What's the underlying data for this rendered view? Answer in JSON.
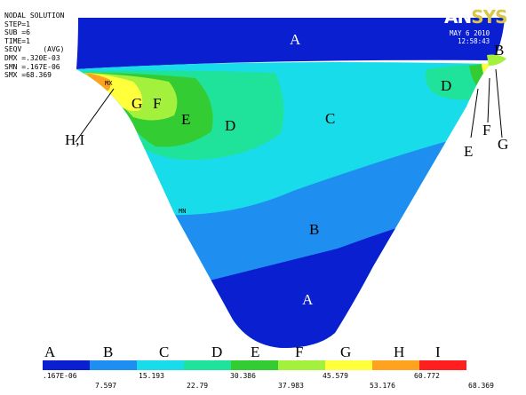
{
  "info": {
    "lines": [
      "NODAL SOLUTION",
      "STEP=1",
      "SUB =6",
      "TIME=1",
      "SEQV     (AVG)",
      "DMX =.320E-03",
      "SMN =.167E-06",
      "SMX =68.369"
    ]
  },
  "logo": {
    "part1": "AN",
    "part2": "SYS"
  },
  "date_lines": [
    "MAY  6 2010",
    "12:58:43"
  ],
  "mx_marker": "MX",
  "mn_marker": "MN",
  "regions": {
    "a_top": "A",
    "a_bottom": "A",
    "b_center": "B",
    "b_right": "B",
    "c_center": "C",
    "d_left": "D",
    "d_right": "D",
    "e_left": "E",
    "f_left": "F",
    "g_left": "G"
  },
  "callouts": {
    "hi": "H,I",
    "e": "E",
    "f": "F",
    "g": "G"
  },
  "legend": {
    "letters": [
      "A",
      "B",
      "C",
      "D",
      "E",
      "F",
      "G",
      "H",
      "I"
    ],
    "colors": [
      "#0a1fd0",
      "#1e8ff0",
      "#19dcea",
      "#1fe39a",
      "#33cc33",
      "#a3f03d",
      "#ffff3c",
      "#ffa21f",
      "#ff1f1f"
    ],
    "values_top": [
      ".167E-06",
      "15.193",
      "30.386",
      "45.579",
      "60.772"
    ],
    "values_bottom": [
      "7.597",
      "22.79",
      "37.983",
      "53.176",
      "68.369"
    ]
  },
  "colors": {
    "band_a": "#0a1fd0",
    "band_b": "#1e8ff0",
    "band_c": "#19dcea",
    "band_d": "#1fe39a",
    "band_e": "#33cc33",
    "band_f": "#a3f03d",
    "band_g": "#ffff3c",
    "band_h": "#ffa21f"
  }
}
